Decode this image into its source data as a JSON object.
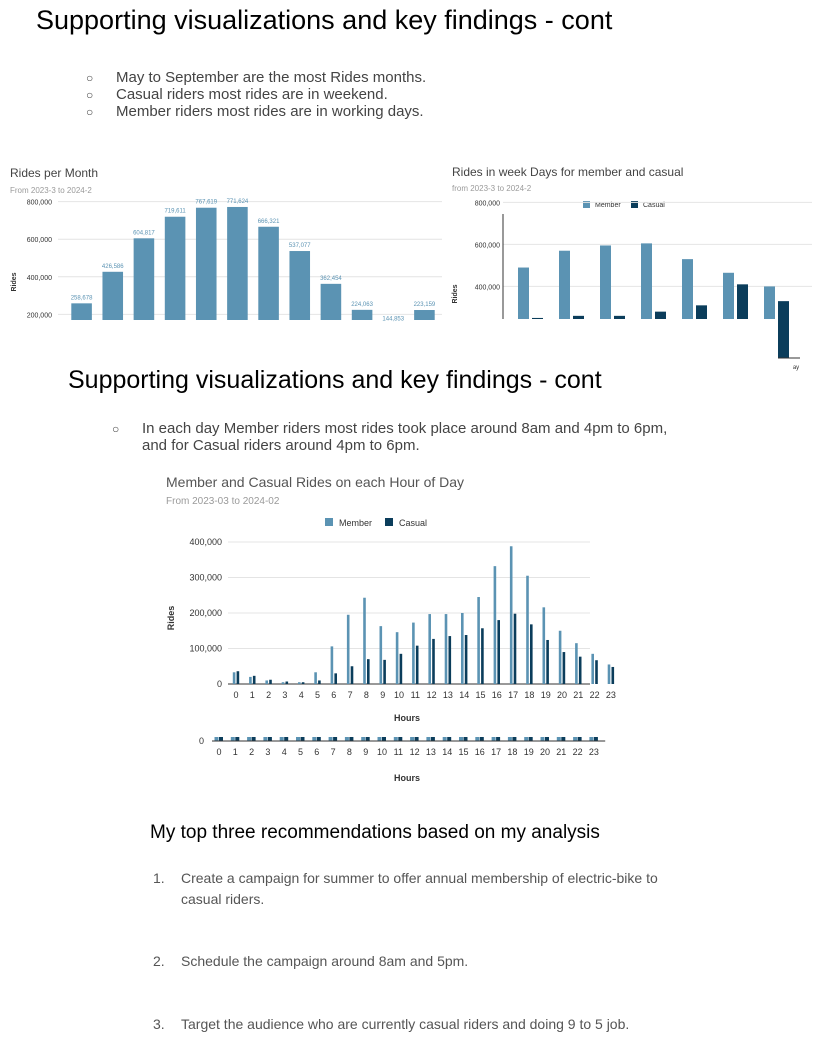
{
  "section1": {
    "title": "Supporting visualizations and key findings - cont",
    "bullets": [
      "May to September are the most Rides months.",
      "Casual riders most rides are in weekend.",
      "Member riders most rides are in working days."
    ]
  },
  "section2": {
    "title": "Supporting visualizations and key findings - cont",
    "bullet_line1": "In each day Member riders most rides took place around 8am and 4pm to 6pm,",
    "bullet_line2": "and for Casual riders around 4pm to 6pm."
  },
  "bullet_glyph": "○",
  "recommendations": {
    "title": "My top three recommendations based on my analysis",
    "items": [
      {
        "num": "1.",
        "line1": "Create a campaign for summer to offer annual membership of electric-bike to",
        "line2": "casual riders."
      },
      {
        "num": "2.",
        "line1": "Schedule the campaign around 8am and 5pm."
      },
      {
        "num": "3.",
        "line1": "Target the audience who are currently casual riders and doing 9 to 5 job."
      }
    ]
  },
  "colors": {
    "member": "#5b93b3",
    "casual": "#0b3d5b",
    "grid": "#e4e4e4"
  },
  "chart_data": [
    {
      "type": "bar",
      "title": "Rides per Month",
      "subtitle": "From 2023-3 to 2024-2",
      "ylabel": "Rides",
      "ylim": [
        170000,
        830000
      ],
      "yticks": [
        200000,
        400000,
        600000,
        800000
      ],
      "ytick_labels": [
        "200,000",
        "400,000",
        "600,000",
        "800,000"
      ],
      "values": [
        258678,
        426586,
        604817,
        719611,
        767619,
        771624,
        666321,
        537077,
        362454,
        224063,
        144853,
        223159
      ],
      "value_labels": [
        "258,678",
        "426,586",
        "604,817",
        "719,611",
        "767,619",
        "771,624",
        "666,321",
        "537,077",
        "362,454",
        "224,063",
        "144,853",
        "223,159"
      ]
    },
    {
      "type": "bar",
      "title": "Rides in week Days for member and casual",
      "subtitle": "from 2023-3 to 2024-2",
      "ylabel": "Rides",
      "ylim": [
        245000,
        840000
      ],
      "yticks": [
        400000,
        600000,
        800000
      ],
      "ytick_labels": [
        "400,000",
        "600,000",
        "800,000"
      ],
      "legend": "top",
      "clipped_label": "ay",
      "series": [
        {
          "name": "Member",
          "values": [
            490000,
            570000,
            595000,
            605000,
            530000,
            465000,
            400000
          ]
        },
        {
          "name": "Casual",
          "values": [
            250000,
            260000,
            260000,
            280000,
            310000,
            410000,
            330000
          ]
        }
      ]
    },
    {
      "type": "bar",
      "title": "Member and Casual Rides on each Hour of Day",
      "subtitle": "From 2023-03 to 2024-02",
      "xlabel": "Hours",
      "ylabel": "Rides",
      "ylim": [
        0,
        400000
      ],
      "yticks": [
        0,
        100000,
        200000,
        300000,
        400000
      ],
      "ytick_labels": [
        "0",
        "100,000",
        "200,000",
        "300,000",
        "400,000"
      ],
      "legend": "top",
      "x": [
        "0",
        "1",
        "2",
        "3",
        "4",
        "5",
        "6",
        "7",
        "8",
        "9",
        "10",
        "11",
        "12",
        "13",
        "14",
        "15",
        "16",
        "17",
        "18",
        "19",
        "20",
        "21",
        "22",
        "23"
      ],
      "series": [
        {
          "name": "Member",
          "values": [
            33000,
            20000,
            10000,
            5000,
            5000,
            33000,
            106000,
            195000,
            243000,
            163000,
            146000,
            173000,
            197000,
            197000,
            200000,
            245000,
            332000,
            388000,
            305000,
            216000,
            150000,
            115000,
            85000,
            55000
          ]
        },
        {
          "name": "Casual",
          "values": [
            36000,
            23000,
            12000,
            7000,
            5000,
            10000,
            30000,
            50000,
            70000,
            68000,
            85000,
            108000,
            127000,
            135000,
            138000,
            157000,
            180000,
            198000,
            168000,
            124000,
            90000,
            77000,
            67000,
            48000
          ]
        }
      ]
    },
    {
      "type": "bar",
      "xlabel": "Hours",
      "yticks": [
        0
      ],
      "ytick_labels": [
        "0"
      ],
      "x": [
        "0",
        "1",
        "2",
        "3",
        "4",
        "5",
        "6",
        "7",
        "8",
        "9",
        "10",
        "11",
        "12",
        "13",
        "14",
        "15",
        "16",
        "17",
        "18",
        "19",
        "20",
        "21",
        "22",
        "23"
      ]
    }
  ]
}
